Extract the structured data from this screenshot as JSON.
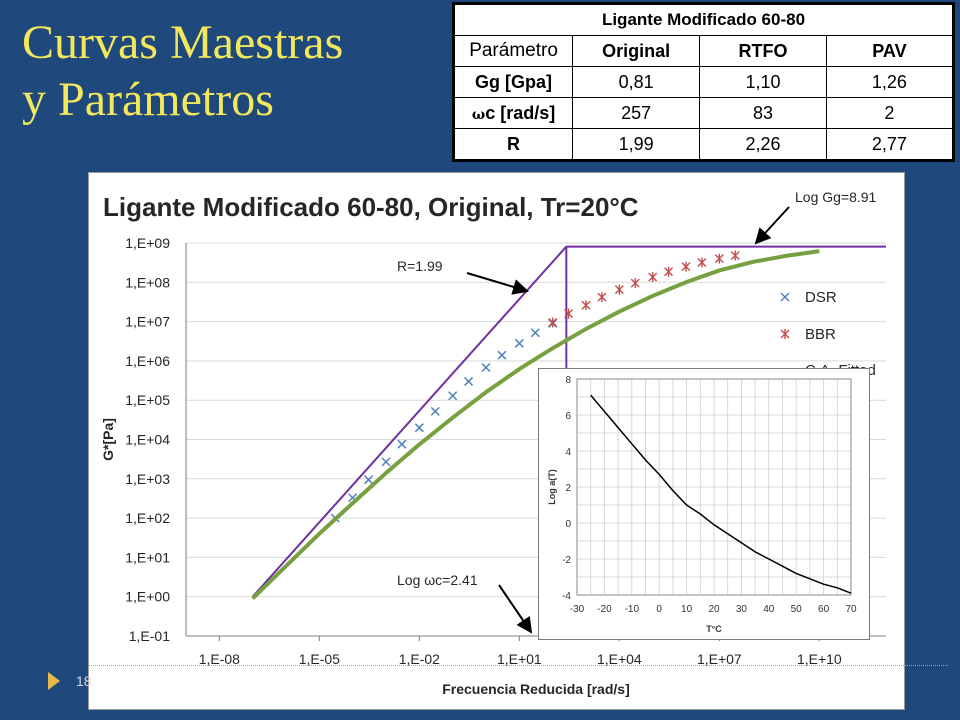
{
  "slide": {
    "title_line1": "Curvas Maestras",
    "title_line2": "y Parámetros",
    "page_number": "18",
    "background_color": "#1f497d",
    "title_color": "#f3e85c"
  },
  "params_table": {
    "caption": "Ligante Modificado 60-80",
    "columns": [
      "Parámetro",
      "Original",
      "RTFO",
      "PAV"
    ],
    "rows": [
      {
        "param": "Gg [Gpa]",
        "symbol": "",
        "values": [
          "0,81",
          "1,10",
          "1,26"
        ]
      },
      {
        "param": "c [rad/s]",
        "symbol": "ω",
        "values": [
          "257",
          "83",
          "2"
        ]
      },
      {
        "param": "R",
        "symbol": "",
        "values": [
          "1,99",
          "2,26",
          "2,77"
        ]
      }
    ]
  },
  "chart_data": [
    {
      "type": "scatter",
      "title": "Ligante Modificado 60-80, Original, Tr=20°C",
      "xlabel": "Frecuencia Reducida [rad/s]",
      "ylabel": "G*[Pa]",
      "x_scale": "log",
      "y_scale": "log",
      "xlim": [
        1e-09,
        1000000000000.0
      ],
      "ylim": [
        0.1,
        1000000000.0
      ],
      "x_tick_labels": [
        "1,E-08",
        "1,E-05",
        "1,E-02",
        "1,E+01",
        "1,E+04",
        "1,E+07",
        "1,E+10"
      ],
      "x_tick_values": [
        1e-08,
        1e-05,
        0.01,
        10.0,
        10000.0,
        10000000.0,
        10000000000.0
      ],
      "y_tick_labels": [
        "1,E+09",
        "1,E+08",
        "1,E+07",
        "1,E+06",
        "1,E+05",
        "1,E+04",
        "1,E+03",
        "1,E+02",
        "1,E+01",
        "1,E+00",
        "1,E-01"
      ],
      "y_tick_values": [
        1000000000.0,
        100000000.0,
        10000000.0,
        1000000.0,
        100000.0,
        10000.0,
        1000.0,
        100.0,
        10.0,
        1.0,
        0.1
      ],
      "grid": true,
      "legend_position": "right",
      "series": [
        {
          "name": "DSR",
          "marker": "x",
          "color": "#4f81bd",
          "x": [
            3e-05,
            0.0001,
            0.0003,
            0.001,
            0.003,
            0.01,
            0.03,
            0.1,
            0.3,
            1,
            3,
            10,
            30,
            100
          ],
          "y": [
            100,
            330,
            950,
            2700,
            7600,
            20000,
            52000,
            130000,
            300000,
            680000,
            1400000,
            2800000,
            5200000,
            9000000
          ]
        },
        {
          "name": "BBR",
          "marker": "star",
          "color": "#c0504d",
          "x": [
            100,
            300,
            1000,
            3000,
            10000,
            30000,
            100000,
            300000,
            1000000,
            3000000,
            10000000,
            30000000
          ],
          "y": [
            9500000,
            16000000,
            26000000,
            42000000,
            65000000,
            95000000,
            135000000,
            185000000,
            250000000,
            320000000,
            400000000,
            480000000
          ]
        },
        {
          "name": "C.A. Fitted",
          "marker": "line",
          "color": "#77a040",
          "x": [
            1e-07,
            1e-06,
            1e-05,
            0.0001,
            0.001,
            0.01,
            0.1,
            1,
            10,
            100,
            1000,
            10000.0,
            100000.0,
            1000000.0,
            10000000.0,
            100000000.0,
            1000000000.0,
            10000000000.0
          ],
          "y": [
            0.9,
            6,
            40,
            240,
            1400,
            7500,
            36000,
            160000,
            620000,
            2100000,
            6500000,
            18000000,
            45000000,
            100000000,
            200000000,
            330000000,
            470000000,
            620000000
          ]
        }
      ],
      "construction_lines": [
        {
          "from": [
            1e-07,
            1
          ],
          "to": [
            257,
            810000000
          ],
          "color": "#7030a0"
        },
        {
          "from": [
            257,
            810000000
          ],
          "to": [
            1000000000000.0,
            810000000
          ],
          "color": "#7030a0"
        },
        {
          "from": [
            257,
            1
          ],
          "to": [
            257,
            810000000
          ],
          "color": "#7030a0"
        }
      ],
      "annotations": [
        {
          "text": "Log Gg=8.91",
          "points_to": "horizontal asymptote"
        },
        {
          "text": "R=1.99",
          "points_to": "intersection"
        },
        {
          "text": "Log ωc=2.41",
          "points_to": "crossover frequency"
        }
      ]
    },
    {
      "type": "line",
      "title": "",
      "xlabel": "T°C",
      "ylabel": "Log a(T)",
      "xlim": [
        -30,
        70
      ],
      "ylim": [
        -4,
        8
      ],
      "x_tick_labels": [
        "-30",
        "-20",
        "-10",
        "0",
        "10",
        "20",
        "30",
        "40",
        "50",
        "60",
        "70"
      ],
      "x_tick_values": [
        -30,
        -20,
        -10,
        0,
        10,
        20,
        30,
        40,
        50,
        60,
        70
      ],
      "y_tick_labels": [
        "8",
        "6",
        "4",
        "2",
        "0",
        "-2",
        "-4"
      ],
      "y_tick_values": [
        8,
        6,
        4,
        2,
        0,
        -2,
        -4
      ],
      "grid": true,
      "series": [
        {
          "color": "#000000",
          "x": [
            -25,
            -20,
            -15,
            -10,
            -5,
            0,
            5,
            10,
            15,
            20,
            25,
            30,
            35,
            40,
            45,
            50,
            55,
            60,
            65,
            70
          ],
          "y": [
            7.1,
            6.2,
            5.3,
            4.4,
            3.5,
            2.7,
            1.8,
            1.0,
            0.5,
            -0.1,
            -0.6,
            -1.1,
            -1.6,
            -2.0,
            -2.4,
            -2.8,
            -3.1,
            -3.4,
            -3.6,
            -3.9
          ]
        }
      ]
    }
  ]
}
